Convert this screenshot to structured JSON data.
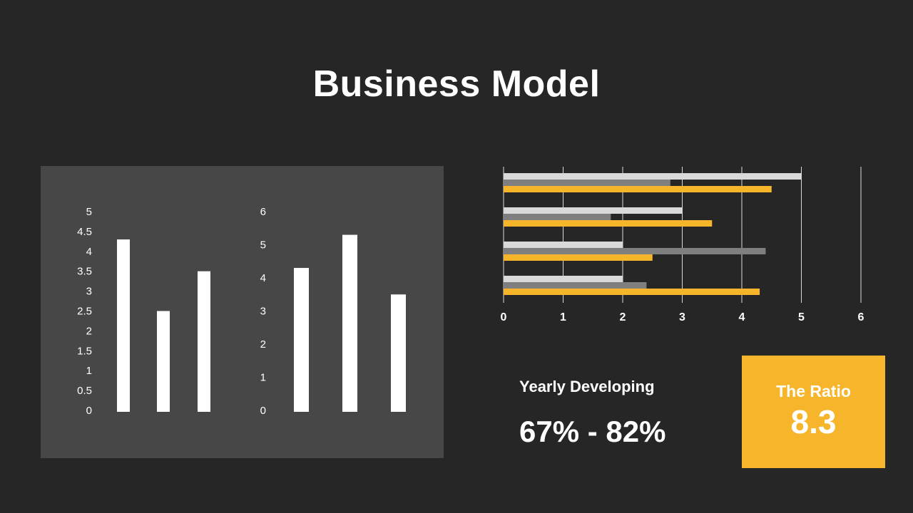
{
  "title": "Business Model",
  "colors": {
    "background": "#262626",
    "panel": "#474747",
    "bar_white": "#ffffff",
    "light_gray": "#d9d9d9",
    "mid_gray": "#7f7f7f",
    "accent": "#f7b52c"
  },
  "chart_data": [
    {
      "type": "bar",
      "categories": [
        "",
        "",
        ""
      ],
      "values": [
        4.3,
        2.5,
        3.5
      ],
      "ylim": [
        0,
        5
      ],
      "yticks": [
        "0",
        "0.5",
        "1",
        "1.5",
        "2",
        "2.5",
        "3",
        "3.5",
        "4",
        "4.5",
        "5"
      ],
      "xlabel": "",
      "ylabel": "",
      "title": "",
      "grid": false
    },
    {
      "type": "bar",
      "categories": [
        "",
        "",
        ""
      ],
      "values": [
        4.3,
        5.3,
        3.5
      ],
      "ylim": [
        0,
        6
      ],
      "yticks": [
        "0",
        "1",
        "2",
        "3",
        "4",
        "5",
        "6"
      ],
      "xlabel": "",
      "ylabel": "",
      "title": "",
      "grid": false
    },
    {
      "type": "bar",
      "orientation": "horizontal",
      "categories": [
        "",
        "",
        "",
        ""
      ],
      "series": [
        {
          "values": [
            5.0,
            3.0,
            2.0,
            2.0
          ]
        },
        {
          "values": [
            2.8,
            1.8,
            4.4,
            2.4
          ]
        },
        {
          "values": [
            4.5,
            3.5,
            2.5,
            4.3
          ]
        }
      ],
      "xlim": [
        0,
        6
      ],
      "xticks": [
        "0",
        "1",
        "2",
        "3",
        "4",
        "5",
        "6"
      ],
      "xlabel": "",
      "ylabel": "",
      "title": "",
      "grid": true
    }
  ],
  "stat": {
    "label": "Yearly Developing",
    "value": "67% - 82%"
  },
  "ratio": {
    "label": "The Ratio",
    "value": "8.3"
  }
}
